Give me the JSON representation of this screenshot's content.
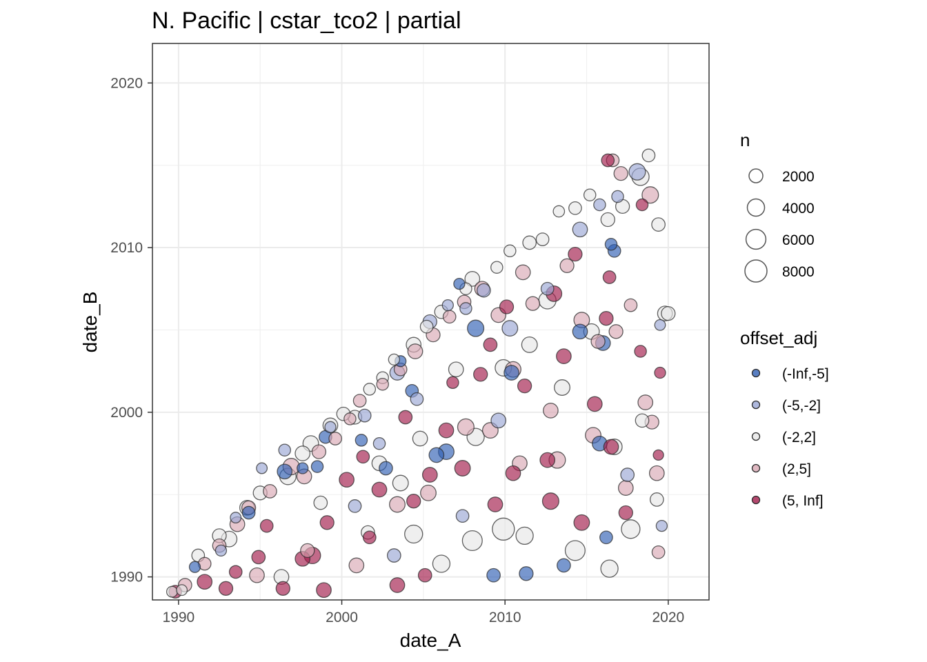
{
  "chart_data": {
    "type": "scatter",
    "title": "N. Pacific | cstar_tco2 | partial",
    "xlabel": "date_A",
    "ylabel": "date_B",
    "xlim": [
      1988.4,
      2022.5
    ],
    "ylim": [
      1988.6,
      2022.4
    ],
    "x_ticks": [
      1990,
      2000,
      2010,
      2020
    ],
    "y_ticks": [
      1990,
      2000,
      2010,
      2020
    ],
    "x_tick_labels": [
      "1990",
      "2000",
      "2010",
      "2020"
    ],
    "y_tick_labels": [
      "1990",
      "2000",
      "2010",
      "2020"
    ],
    "grid": true,
    "size_legend": {
      "title": "n",
      "values": [
        2000,
        4000,
        6000,
        8000
      ],
      "labels": [
        "2000",
        "4000",
        "6000",
        "8000"
      ]
    },
    "color_legend": {
      "title": "offset_adj",
      "categories": [
        "(-Inf,-5]",
        "(-5,-2]",
        "(-2,2]",
        "(2,5]",
        "(5, Inf]"
      ],
      "colors": [
        "#2f5fb3",
        "#9aa6d4",
        "#e6e6e6",
        "#d8a7b3",
        "#a11a4a"
      ]
    },
    "series": [
      {
        "name": "(-Inf,-5]",
        "points": [
          [
            1991,
            1990.6,
            900
          ],
          [
            1996.5,
            1996.4,
            2500
          ],
          [
            1997.6,
            1996.6,
            900
          ],
          [
            1999,
            1998.5,
            1500
          ],
          [
            2001.2,
            1998.3,
            1200
          ],
          [
            2002.7,
            1996.6,
            1800
          ],
          [
            2003.6,
            2003.1,
            900
          ],
          [
            2004.3,
            2001.3,
            1500
          ],
          [
            2005.8,
            1997.4,
            2500
          ],
          [
            2006.4,
            1997.6,
            3000
          ],
          [
            2007.2,
            2007.8,
            900
          ],
          [
            2008.2,
            2005.1,
            3500
          ],
          [
            2009.3,
            1990.1,
            1800
          ],
          [
            2010.4,
            2002.4,
            2500
          ],
          [
            2011.3,
            1990.2,
            2000
          ],
          [
            2013.6,
            1990.7,
            1800
          ],
          [
            2014.6,
            2004.9,
            2500
          ],
          [
            2015.8,
            1998.1,
            2500
          ],
          [
            2016.5,
            2010.2,
            1200
          ],
          [
            2016.2,
            1992.4,
            1500
          ],
          [
            2016,
            2004.2,
            2500
          ],
          [
            2016.7,
            2009.8,
            1500
          ],
          [
            1994.3,
            1993.9,
            1500
          ],
          [
            1998.5,
            1996.7,
            1200
          ]
        ]
      },
      {
        "name": "(-5,-2]",
        "points": [
          [
            1993.5,
            1993.6,
            800
          ],
          [
            1995.1,
            1996.6,
            800
          ],
          [
            1996.5,
            1997.7,
            1200
          ],
          [
            1999.3,
            1999.1,
            900
          ],
          [
            2001.4,
            1999.8,
            1500
          ],
          [
            2002.3,
            1998.1,
            1200
          ],
          [
            2003.4,
            2002.4,
            2500
          ],
          [
            2004.6,
            2000.8,
            1500
          ],
          [
            2005.4,
            2005.5,
            2000
          ],
          [
            2006.5,
            2006.5,
            900
          ],
          [
            2007.6,
            2006.3,
            1200
          ],
          [
            2008.7,
            2007.4,
            1800
          ],
          [
            2009.6,
            1999.5,
            2500
          ],
          [
            2010.3,
            2005.1,
            3000
          ],
          [
            2012.6,
            2007.5,
            1500
          ],
          [
            2014.6,
            2011.1,
            2500
          ],
          [
            2015.8,
            2012.6,
            1200
          ],
          [
            2016.9,
            2013.1,
            1200
          ],
          [
            2017.5,
            1996.2,
            1800
          ],
          [
            2018.1,
            2014.6,
            3500
          ],
          [
            2019.5,
            2005.3,
            800
          ],
          [
            2019.6,
            1993.1,
            900
          ],
          [
            2000.8,
            1994.3,
            1500
          ],
          [
            2003.2,
            1991.3,
            1800
          ],
          [
            2007.4,
            1993.7,
            1500
          ],
          [
            1992.6,
            1991.6,
            900
          ]
        ]
      },
      {
        "name": "(-2,2]",
        "points": [
          [
            1989.6,
            1989.1,
            800
          ],
          [
            1990.2,
            1989.2,
            800
          ],
          [
            1991.2,
            1991.3,
            1500
          ],
          [
            1992.5,
            1992.5,
            2000
          ],
          [
            1993.1,
            1992.3,
            3000
          ],
          [
            1994.2,
            1994.2,
            2500
          ],
          [
            1995,
            1995.1,
            2000
          ],
          [
            1996.7,
            1996.1,
            3500
          ],
          [
            1997.6,
            1997.5,
            2500
          ],
          [
            1998.1,
            1998.1,
            3000
          ],
          [
            1999.3,
            1999.2,
            2500
          ],
          [
            2000.1,
            1999.9,
            1800
          ],
          [
            2001.7,
            2001.4,
            1200
          ],
          [
            2002.5,
            2002.1,
            1200
          ],
          [
            2003.2,
            2003.2,
            900
          ],
          [
            2004.4,
            2004.1,
            2500
          ],
          [
            2005.2,
            2005.2,
            1500
          ],
          [
            2006.1,
            2006.1,
            1800
          ],
          [
            2007.6,
            2007.5,
            1200
          ],
          [
            2008,
            2008.1,
            2500
          ],
          [
            2009.5,
            2008.8,
            1200
          ],
          [
            2010.3,
            2009.8,
            1200
          ],
          [
            2011.5,
            2010.3,
            1800
          ],
          [
            2012.3,
            2010.5,
            1500
          ],
          [
            2013.3,
            2012.2,
            1000
          ],
          [
            2014.3,
            2012.4,
            1500
          ],
          [
            2015.2,
            2013.2,
            1200
          ],
          [
            2016.3,
            2011.7,
            2000
          ],
          [
            2017.2,
            2012.5,
            2000
          ],
          [
            2018.3,
            2014.3,
            4000
          ],
          [
            2018.8,
            2015.6,
            1500
          ],
          [
            2019.4,
            2011.4,
            1800
          ],
          [
            2019.8,
            2006,
            2500
          ],
          [
            2016.4,
            1990.5,
            4000
          ],
          [
            2014.3,
            1991.6,
            6000
          ],
          [
            2011.2,
            1992.5,
            4000
          ],
          [
            2009.9,
            1992.9,
            8000
          ],
          [
            2008,
            1992.2,
            6000
          ],
          [
            2006.1,
            1990.8,
            4000
          ],
          [
            2004.4,
            1992.6,
            4500
          ],
          [
            2003.6,
            1995.7,
            3000
          ],
          [
            2002.3,
            1996.9,
            2500
          ],
          [
            2000.8,
            1999.7,
            2000
          ],
          [
            2008.2,
            1998.5,
            4000
          ],
          [
            2009.9,
            2002.7,
            3500
          ],
          [
            2011.5,
            2004.1,
            3000
          ],
          [
            2012.6,
            2006.8,
            4000
          ],
          [
            2015.3,
            2004.9,
            3000
          ],
          [
            2017.7,
            1992.9,
            5000
          ],
          [
            2019.3,
            1994.7,
            1800
          ],
          [
            2020,
            2006,
            2000
          ],
          [
            1996.3,
            1990,
            2500
          ],
          [
            1998.7,
            1994.5,
            1800
          ],
          [
            2001.6,
            1992.7,
            1800
          ],
          [
            2004.8,
            1998.4,
            2500
          ],
          [
            2007,
            2002.6,
            2500
          ],
          [
            2013.5,
            2001.5,
            3000
          ],
          [
            2016.7,
            1997.9,
            3000
          ],
          [
            2018.4,
            1999.5,
            1800
          ]
        ]
      },
      {
        "name": "(2,5]",
        "points": [
          [
            1990.4,
            1989.5,
            1800
          ],
          [
            1991.6,
            1990.8,
            1500
          ],
          [
            1992.5,
            1991.9,
            1800
          ],
          [
            1993.6,
            1993.2,
            2500
          ],
          [
            1994.3,
            1994.2,
            2000
          ],
          [
            1995.6,
            1995.2,
            1800
          ],
          [
            1996.9,
            1996.7,
            3500
          ],
          [
            1997.7,
            1996.1,
            2500
          ],
          [
            1998.6,
            1997.6,
            2000
          ],
          [
            1999.6,
            1998.4,
            1500
          ],
          [
            2000.5,
            1999.6,
            1200
          ],
          [
            2001.1,
            2000.7,
            1500
          ],
          [
            2002.5,
            2001.7,
            1200
          ],
          [
            2003.6,
            2002.6,
            1500
          ],
          [
            2004.5,
            2003.7,
            2500
          ],
          [
            2005.6,
            2004.7,
            2000
          ],
          [
            2006.6,
            2005.8,
            1500
          ],
          [
            2007.5,
            2006.7,
            1800
          ],
          [
            2008.6,
            2007.5,
            2500
          ],
          [
            2009.6,
            2005.9,
            2500
          ],
          [
            2010.5,
            2002.6,
            3000
          ],
          [
            2011.7,
            2006.6,
            2000
          ],
          [
            2012.8,
            2000.1,
            2500
          ],
          [
            2013.8,
            2008.9,
            2000
          ],
          [
            2014.7,
            2005.6,
            3000
          ],
          [
            2015.7,
            2004.3,
            2000
          ],
          [
            2016.6,
            2015.3,
            1500
          ],
          [
            2017.1,
            2014.5,
            2000
          ],
          [
            2017.7,
            2006.5,
            1500
          ],
          [
            2018.9,
            2013.2,
            3500
          ],
          [
            2019.3,
            1996.3,
            2500
          ],
          [
            2019.4,
            1991.5,
            1500
          ],
          [
            1994.8,
            1990.1,
            2500
          ],
          [
            1997.9,
            1991.6,
            2000
          ],
          [
            2000.9,
            1990.7,
            2500
          ],
          [
            2003.4,
            1994.4,
            3000
          ],
          [
            2005.3,
            1995.1,
            3000
          ],
          [
            2007.6,
            1999.1,
            3500
          ],
          [
            2009.1,
            1998.9,
            3000
          ],
          [
            2010.9,
            1996.9,
            2500
          ],
          [
            2013.2,
            1997.1,
            3500
          ],
          [
            2015.4,
            1998.6,
            3000
          ],
          [
            2017.4,
            1995.4,
            2500
          ],
          [
            2018.6,
            2000.6,
            2500
          ],
          [
            2011.1,
            2008.5,
            2500
          ],
          [
            2016.8,
            2004.9,
            2000
          ],
          [
            2019,
            1999.4,
            2000
          ]
        ]
      },
      {
        "name": "(5, Inf]",
        "points": [
          [
            1989.8,
            1989.1,
            1500
          ],
          [
            1991.6,
            1989.7,
            2500
          ],
          [
            1992.9,
            1989.3,
            2000
          ],
          [
            1993.5,
            1990.3,
            1500
          ],
          [
            1994.9,
            1991.2,
            1800
          ],
          [
            1996.4,
            1989.3,
            2000
          ],
          [
            1997.6,
            1991.1,
            2500
          ],
          [
            1998.2,
            1991.3,
            3500
          ],
          [
            1998.9,
            1989.2,
            2500
          ],
          [
            1999.1,
            1993.3,
            2000
          ],
          [
            2000.3,
            1995.9,
            2500
          ],
          [
            2001.3,
            1997.3,
            1500
          ],
          [
            2002.3,
            1995.3,
            2500
          ],
          [
            2003.4,
            1989.5,
            2500
          ],
          [
            2004.4,
            1994.6,
            2000
          ],
          [
            2005.4,
            1996.2,
            2500
          ],
          [
            2006.4,
            1998.9,
            2500
          ],
          [
            2007.4,
            1996.6,
            3000
          ],
          [
            2008.5,
            2002.3,
            2000
          ],
          [
            2009.1,
            2004.1,
            1800
          ],
          [
            2010.5,
            1996.3,
            2500
          ],
          [
            2011.2,
            2001.6,
            2000
          ],
          [
            2012.6,
            1997.1,
            2500
          ],
          [
            2013.6,
            2003.4,
            2500
          ],
          [
            2014.7,
            1993.3,
            3000
          ],
          [
            2015.5,
            2000.5,
            2500
          ],
          [
            2016.2,
            2005.7,
            2000
          ],
          [
            2016.3,
            2015.3,
            1500
          ],
          [
            2017.4,
            1993.9,
            2000
          ],
          [
            2018.3,
            2003.7,
            1200
          ],
          [
            2019.5,
            2002.4,
            900
          ],
          [
            2019.4,
            1997.4,
            700
          ],
          [
            2013,
            2007.2,
            3000
          ],
          [
            2010.1,
            2006.4,
            2000
          ],
          [
            2009.4,
            1994.4,
            2500
          ],
          [
            2012.8,
            1994.6,
            3500
          ],
          [
            2014.3,
            2009.6,
            2000
          ],
          [
            2016.4,
            2008.2,
            1500
          ],
          [
            2018.4,
            2012.6,
            1200
          ],
          [
            2016.5,
            1997.9,
            2500
          ],
          [
            2003.9,
            1999.7,
            1800
          ],
          [
            2006.8,
            2001.8,
            1200
          ],
          [
            1995.4,
            1993.1,
            1500
          ],
          [
            2001.7,
            1992.4,
            1500
          ],
          [
            2005.1,
            1990.1,
            1800
          ]
        ]
      }
    ]
  }
}
